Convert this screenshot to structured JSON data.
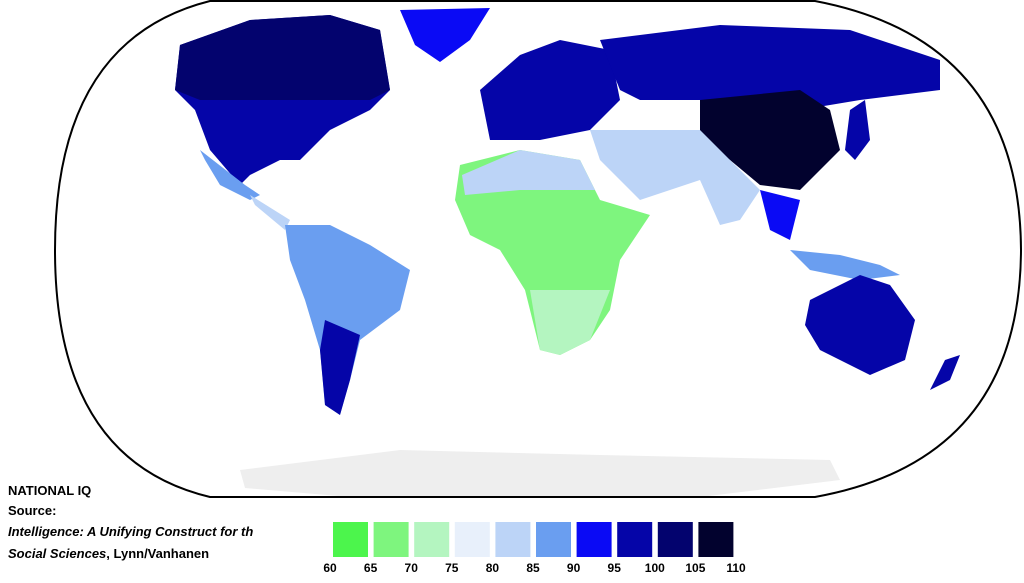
{
  "title": "NATIONAL IQ",
  "source_label": "Source:",
  "source_title_line1": "Intelligence: A Unifying Construct for th",
  "source_title_line2": "Social Sciences",
  "source_authors": ", Lynn/Vanhanen",
  "legend": {
    "ticks": [
      60,
      65,
      70,
      75,
      80,
      85,
      90,
      95,
      100,
      105,
      110
    ],
    "colors": [
      "#4cf54c",
      "#7ef57e",
      "#b4f5c0",
      "#e8f0fb",
      "#bcd4f7",
      "#6a9ef0",
      "#0a0af5",
      "#0505a8",
      "#03036e",
      "#02022e"
    ]
  }
}
